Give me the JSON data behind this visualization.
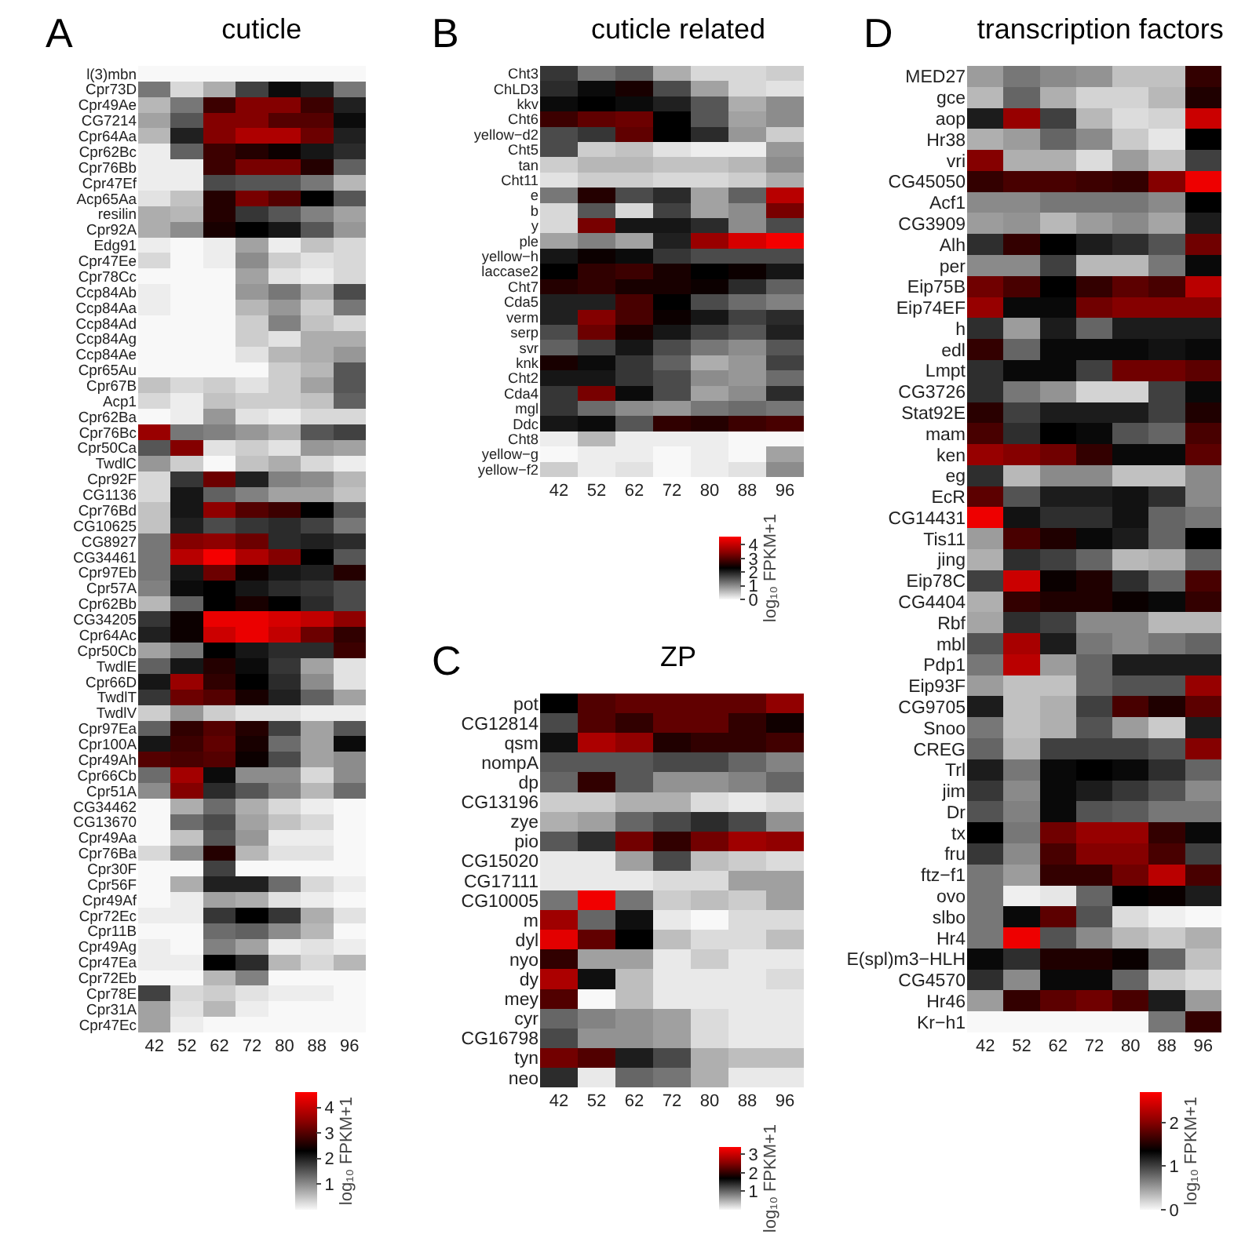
{
  "chart_data": [
    {
      "type": "heatmap",
      "title": "cuticle",
      "annotations": [
        "A"
      ],
      "clabel": "log₁₀ FPKM+1",
      "clim": [
        0,
        4.6
      ],
      "cticks": [
        1,
        2,
        3,
        4
      ],
      "categories": [
        "42",
        "52",
        "62",
        "72",
        "80",
        "88",
        "96"
      ],
      "y_categories": [
        "l(3)mbn",
        "Cpr73D",
        "Cpr49Ae",
        "CG7214",
        "Cpr64Aa",
        "Cpr62Bc",
        "Cpr76Bb",
        "Cpr47Ef",
        "Acp65Aa",
        "resilin",
        "Cpr92A",
        "Edg91",
        "Cpr47Ee",
        "Cpr78Cc",
        "Ccp84Ab",
        "Ccp84Aa",
        "Ccp84Ad",
        "Ccp84Ag",
        "Ccp84Ae",
        "Cpr65Au",
        "Cpr67B",
        "Acp1",
        "Cpr62Ba",
        "Cpr76Bc",
        "Cpr50Ca",
        "TwdlC",
        "Cpr92F",
        "CG1136",
        "Cpr76Bd",
        "CG10625",
        "CG8927",
        "CG34461",
        "Cpr97Eb",
        "Cpr57A",
        "Cpr62Bb",
        "CG34205",
        "Cpr64Ac",
        "Cpr50Cb",
        "TwdlE",
        "Cpr66D",
        "TwdlT",
        "TwdlV",
        "Cpr97Ea",
        "Cpr100A",
        "Cpr49Ah",
        "Cpr66Cb",
        "Cpr51A",
        "CG34462",
        "CG13670",
        "Cpr49Aa",
        "Cpr76Ba",
        "Cpr30F",
        "Cpr56F",
        "Cpr49Af",
        "Cpr72Ec",
        "Cpr11B",
        "Cpr49Ag",
        "Cpr47Ea",
        "Cpr72Eb",
        "Cpr78E",
        "Cpr31A",
        "Cpr47Ec"
      ],
      "cells": [
        [
          0,
          0,
          0,
          0,
          0,
          0,
          0
        ],
        [
          1.2,
          0.3,
          0.7,
          1.7,
          2.2,
          2.0,
          1.2
        ],
        [
          0.6,
          1.2,
          2.8,
          3.4,
          3.4,
          2.8,
          2.0
        ],
        [
          0.8,
          1.5,
          3.4,
          3.4,
          3.0,
          3.0,
          2.2
        ],
        [
          0.6,
          2.0,
          3.4,
          3.8,
          3.8,
          3.2,
          2.0
        ],
        [
          0.1,
          1.4,
          2.8,
          2.6,
          2.4,
          2.1,
          1.9
        ],
        [
          0.1,
          0.1,
          2.8,
          3.3,
          3.3,
          2.6,
          1.4
        ],
        [
          0.1,
          0.1,
          1.6,
          1.5,
          1.5,
          1.2,
          0.6
        ],
        [
          0.2,
          0.5,
          2.6,
          3.3,
          3.0,
          2.3,
          1.5
        ],
        [
          0.7,
          0.6,
          2.6,
          1.8,
          1.5,
          1.1,
          0.8
        ],
        [
          0.7,
          1.0,
          2.5,
          2.3,
          2.1,
          1.5,
          0.9
        ],
        [
          0.1,
          0,
          0.1,
          0.8,
          0.1,
          0.5,
          0.3
        ],
        [
          0.3,
          0,
          0.1,
          1.0,
          0.4,
          0.2,
          0.3
        ],
        [
          0,
          0,
          0,
          0.8,
          0.2,
          0.1,
          0.3
        ],
        [
          0.1,
          0,
          0,
          0.9,
          1.2,
          0.7,
          1.6
        ],
        [
          0.1,
          0,
          0,
          0.6,
          0.9,
          0.4,
          1.2
        ],
        [
          0,
          0,
          0,
          0.4,
          1.1,
          0.5,
          0.3
        ],
        [
          0,
          0,
          0,
          0.4,
          0.2,
          0.7,
          0.7
        ],
        [
          0,
          0,
          0,
          0.2,
          0.6,
          0.7,
          0.9
        ],
        [
          0,
          0,
          0,
          0,
          0.4,
          0.6,
          1.5
        ],
        [
          0.5,
          0.3,
          0.4,
          0.2,
          0.4,
          0.8,
          1.5
        ],
        [
          0.3,
          0.1,
          0.5,
          0.4,
          0.4,
          0.5,
          1.4
        ],
        [
          0,
          0.1,
          0.9,
          0.2,
          0.1,
          0.3,
          0.3
        ],
        [
          3.6,
          1.2,
          1.1,
          0.9,
          0.7,
          1.5,
          1.7
        ],
        [
          1.5,
          3.4,
          0.2,
          0.4,
          0.2,
          0.9,
          0.8
        ],
        [
          0.9,
          0.4,
          0,
          0.5,
          0.7,
          0.3,
          0.1
        ],
        [
          0.3,
          1.8,
          3.2,
          2.0,
          1.1,
          1.0,
          0.6
        ],
        [
          0.3,
          2.1,
          1.4,
          1.1,
          0.8,
          0.8,
          0.5
        ],
        [
          0.5,
          2.1,
          3.5,
          3.0,
          2.8,
          2.3,
          1.5
        ],
        [
          0.5,
          2.0,
          1.6,
          1.8,
          1.9,
          1.7,
          1.2
        ],
        [
          1.2,
          3.4,
          3.5,
          3.2,
          1.9,
          2.0,
          1.9
        ],
        [
          1.2,
          3.9,
          4.5,
          3.8,
          3.4,
          2.3,
          1.5
        ],
        [
          1.2,
          2.1,
          3.2,
          2.4,
          2.1,
          2.0,
          2.6
        ],
        [
          1.1,
          2.2,
          2.3,
          2.1,
          1.9,
          1.8,
          1.6
        ],
        [
          0.6,
          1.4,
          2.3,
          2.5,
          2.3,
          1.9,
          1.6
        ],
        [
          1.8,
          2.4,
          4.4,
          4.4,
          4.2,
          4.0,
          3.5
        ],
        [
          2.0,
          2.4,
          4.1,
          4.4,
          4.0,
          3.2,
          2.7
        ],
        [
          0.8,
          1.2,
          2.3,
          2.1,
          1.9,
          1.9,
          2.8
        ],
        [
          1.4,
          2.1,
          2.6,
          2.2,
          1.8,
          0.8,
          0.2
        ],
        [
          2.1,
          3.6,
          2.7,
          2.3,
          1.9,
          1.0,
          0.2
        ],
        [
          1.8,
          3.2,
          3.0,
          2.5,
          2.0,
          1.4,
          0.8
        ],
        [
          0.4,
          0.9,
          0.4,
          0.2,
          0.2,
          0.1,
          0.1
        ],
        [
          1.4,
          2.7,
          3.0,
          2.6,
          1.7,
          0.8,
          1.5
        ],
        [
          2.1,
          2.8,
          3.1,
          2.5,
          1.3,
          0.8,
          2.2
        ],
        [
          3.0,
          2.9,
          3.0,
          2.4,
          1.6,
          0.8,
          1.0
        ],
        [
          1.3,
          3.7,
          2.2,
          1.0,
          1.0,
          0.3,
          1.0
        ],
        [
          1.0,
          3.4,
          1.9,
          1.5,
          1.1,
          0.6,
          1.3
        ],
        [
          0,
          0.7,
          1.3,
          0.7,
          0.3,
          0.1,
          0
        ],
        [
          0,
          1.3,
          1.6,
          0.8,
          0.5,
          0.3,
          0
        ],
        [
          0,
          0.5,
          1.5,
          0.9,
          0.1,
          0.1,
          0
        ],
        [
          0.3,
          1.0,
          2.6,
          0.6,
          0.2,
          0.2,
          0
        ],
        [
          0,
          0,
          1.7,
          0,
          0,
          0,
          0
        ],
        [
          0,
          0.7,
          2.0,
          2.0,
          1.3,
          0.3,
          0.1
        ],
        [
          0,
          0.1,
          0.8,
          0.7,
          0.2,
          0.1,
          0
        ],
        [
          0.1,
          0.1,
          1.8,
          2.3,
          1.8,
          0.7,
          0.2
        ],
        [
          0,
          0,
          1.3,
          1.4,
          1.0,
          0.6,
          0
        ],
        [
          0.1,
          0,
          1.1,
          0.8,
          0.1,
          0.2,
          0.1
        ],
        [
          0.1,
          0.1,
          2.3,
          1.9,
          0.6,
          0.3,
          0.6
        ],
        [
          0,
          0,
          0.6,
          1.1,
          0,
          0,
          0
        ],
        [
          1.7,
          0.3,
          0.4,
          0.2,
          0.1,
          0.1,
          0
        ],
        [
          0.8,
          0.2,
          0.6,
          0.1,
          0,
          0,
          0
        ],
        [
          0.8,
          0.1,
          0,
          0,
          0,
          0,
          0
        ]
      ]
    },
    {
      "type": "heatmap",
      "title": "cuticle related",
      "annotations": [
        "B"
      ],
      "clabel": "log₁₀ FPKM+1",
      "clim": [
        0,
        4.6
      ],
      "cticks": [
        0,
        1,
        2,
        3,
        4
      ],
      "categories": [
        "42",
        "52",
        "62",
        "72",
        "80",
        "88",
        "96"
      ],
      "y_categories": [
        "Cht3",
        "ChLD3",
        "kkv",
        "Cht6",
        "yellow−d2",
        "Cht5",
        "tan",
        "Cht11",
        "e",
        "b",
        "y",
        "ple",
        "yellow−h",
        "laccase2",
        "Cht7",
        "Cda5",
        "verm",
        "serp",
        "svr",
        "knk",
        "Cht2",
        "Cda4",
        "mgl",
        "Ddc",
        "Cht8",
        "yellow−g",
        "yellow−f2"
      ],
      "cells": [
        [
          1.8,
          1.2,
          1.4,
          0.7,
          0.3,
          0.3,
          0.4
        ],
        [
          1.9,
          2.2,
          2.5,
          1.6,
          0.8,
          0.3,
          0.2
        ],
        [
          2.2,
          2.3,
          2.2,
          2.0,
          1.5,
          0.7,
          1.0
        ],
        [
          2.8,
          3.1,
          3.2,
          2.3,
          1.5,
          0.8,
          1.0
        ],
        [
          1.6,
          1.8,
          3.1,
          2.3,
          1.9,
          0.9,
          0.4
        ],
        [
          1.6,
          0.4,
          0.5,
          0.2,
          0.1,
          0.1,
          0.9
        ],
        [
          0.4,
          0.6,
          0.6,
          0.5,
          0.5,
          0.6,
          1.0
        ],
        [
          0.2,
          0.4,
          0.4,
          0.3,
          0.3,
          0.4,
          0.7
        ],
        [
          1.2,
          2.6,
          1.6,
          1.9,
          0.8,
          1.4,
          3.9
        ],
        [
          0.3,
          1.5,
          0.3,
          1.7,
          0.8,
          1.0,
          3.3
        ],
        [
          0.3,
          3.3,
          2.1,
          2.1,
          1.9,
          1.0,
          1.6
        ],
        [
          0.8,
          1.1,
          0.8,
          2.0,
          3.6,
          4.2,
          4.5
        ],
        [
          2.1,
          2.4,
          2.2,
          1.8,
          1.6,
          1.6,
          1.6
        ],
        [
          2.3,
          2.7,
          2.8,
          2.5,
          2.3,
          2.4,
          2.1
        ],
        [
          2.6,
          2.7,
          2.5,
          2.5,
          2.4,
          1.9,
          1.4
        ],
        [
          2.0,
          2.0,
          2.9,
          2.3,
          1.6,
          1.3,
          1.1
        ],
        [
          2.0,
          3.4,
          2.9,
          2.4,
          2.1,
          1.7,
          1.9
        ],
        [
          1.6,
          3.2,
          2.5,
          2.1,
          1.7,
          1.5,
          2.0
        ],
        [
          1.4,
          1.7,
          2.1,
          1.6,
          1.2,
          1.0,
          1.5
        ],
        [
          2.5,
          2.2,
          1.8,
          1.4,
          0.7,
          0.9,
          1.7
        ],
        [
          2.1,
          2.1,
          1.8,
          1.6,
          1.0,
          0.9,
          1.3
        ],
        [
          1.8,
          3.3,
          2.2,
          1.6,
          0.8,
          1.0,
          1.9
        ],
        [
          1.8,
          1.3,
          1.0,
          0.9,
          1.2,
          1.3,
          1.2
        ],
        [
          2.1,
          2.2,
          1.5,
          2.7,
          2.6,
          2.8,
          2.9
        ],
        [
          0.1,
          0.6,
          0.1,
          0.1,
          0.1,
          0,
          0
        ],
        [
          0,
          0.1,
          0.1,
          0,
          0.1,
          0,
          0.8
        ],
        [
          0.4,
          0.1,
          0.2,
          0,
          0.1,
          0.2,
          1.0
        ]
      ]
    },
    {
      "type": "heatmap",
      "title": "ZP",
      "annotations": [
        "C"
      ],
      "clabel": "log₁₀ FPKM+1",
      "clim": [
        0,
        3.4
      ],
      "cticks": [
        1,
        2,
        3
      ],
      "categories": [
        "42",
        "52",
        "62",
        "72",
        "80",
        "88",
        "96"
      ],
      "y_categories": [
        "pot",
        "CG12814",
        "qsm",
        "nompA",
        "dp",
        "CG13196",
        "zye",
        "pio",
        "CG15020",
        "CG17111",
        "CG10005",
        "m",
        "dyl",
        "nyo",
        "dy",
        "mey",
        "cyr",
        "CG16798",
        "tyn",
        "neo"
      ],
      "cells": [
        [
          1.7,
          2.2,
          2.3,
          2.3,
          2.3,
          2.3,
          2.6
        ],
        [
          1.2,
          2.2,
          2.0,
          2.3,
          2.3,
          2.0,
          1.8
        ],
        [
          1.6,
          2.8,
          2.6,
          1.9,
          2.0,
          2.0,
          2.1
        ],
        [
          1.1,
          1.1,
          1.1,
          1.2,
          1.2,
          1.0,
          0.8
        ],
        [
          1.0,
          2.0,
          1.1,
          0.7,
          0.7,
          0.8,
          1.0
        ],
        [
          0.3,
          0.3,
          0.5,
          0.5,
          0.2,
          0.1,
          0.2
        ],
        [
          0.5,
          0.6,
          1.0,
          1.2,
          1.4,
          1.2,
          0.7
        ],
        [
          1.1,
          1.4,
          2.4,
          2.0,
          2.4,
          2.7,
          2.6
        ],
        [
          0.1,
          0.1,
          0.6,
          1.2,
          0.4,
          0.3,
          0.2
        ],
        [
          0.1,
          0.1,
          0.1,
          0.2,
          0.2,
          0.6,
          0.6
        ],
        [
          0.9,
          3.3,
          0.9,
          0.3,
          0.4,
          0.3,
          0.6
        ],
        [
          2.7,
          1.0,
          1.6,
          0.1,
          0,
          0.2,
          0.2
        ],
        [
          3.2,
          2.3,
          1.7,
          0.4,
          0.2,
          0.2,
          0.4
        ],
        [
          2.0,
          0.6,
          0.6,
          0.1,
          0.3,
          0.1,
          0.1
        ],
        [
          2.8,
          1.6,
          0.4,
          0.1,
          0.1,
          0.1,
          0.2
        ],
        [
          2.2,
          0,
          0.4,
          0.1,
          0.1,
          0.1,
          0.1
        ],
        [
          1.0,
          0.8,
          0.7,
          0.6,
          0.2,
          0.1,
          0.1
        ],
        [
          1.2,
          0.7,
          0.7,
          0.6,
          0.2,
          0.1,
          0.1
        ],
        [
          2.4,
          2.2,
          1.5,
          1.2,
          0.5,
          0.4,
          0.4
        ],
        [
          1.4,
          0.1,
          1.0,
          0.9,
          0.5,
          0.1,
          0.1
        ]
      ]
    },
    {
      "type": "heatmap",
      "title": "transcription factors",
      "annotations": [
        "D"
      ],
      "clabel": "log₁₀ FPKM+1",
      "clim": [
        0,
        2.7
      ],
      "cticks": [
        0,
        1,
        2
      ],
      "categories": [
        "42",
        "52",
        "62",
        "72",
        "80",
        "88",
        "96"
      ],
      "y_categories": [
        "MED27",
        "gce",
        "aop",
        "Hr38",
        "vri",
        "CG45050",
        "Acf1",
        "CG3909",
        "Alh",
        "per",
        "Eip75B",
        "Eip74EF",
        "h",
        "edl",
        "Lmpt",
        "CG3726",
        "Stat92E",
        "mam",
        "ken",
        "eg",
        "EcR",
        "CG14431",
        "Tis11",
        "jing",
        "Eip78C",
        "CG4404",
        "Rbf",
        "mbl",
        "Pdp1",
        "Eip93F",
        "CG9705",
        "Snoo",
        "CREG",
        "Trl",
        "jim",
        "Dr",
        "tx",
        "fru",
        "ftz−f1",
        "ovo",
        "slbo",
        "Hr4",
        "E(spl)m3−HLH",
        "CG4570",
        "Hr46",
        "Kr−h1"
      ],
      "cells": [
        [
          0.5,
          0.7,
          0.6,
          0.55,
          0.3,
          0.3,
          1.6
        ],
        [
          0.35,
          0.8,
          0.4,
          0.2,
          0.2,
          0.35,
          1.5
        ],
        [
          1.2,
          2.1,
          1.0,
          0.35,
          0.15,
          0.2,
          2.4
        ],
        [
          0.4,
          0.5,
          0.8,
          0.6,
          0.25,
          0.1,
          1.35
        ],
        [
          2.0,
          0.4,
          0.4,
          0.15,
          0.5,
          0.3,
          1.0
        ],
        [
          1.6,
          1.7,
          1.7,
          1.65,
          1.6,
          2.0,
          2.6
        ],
        [
          0.6,
          0.6,
          0.7,
          0.7,
          0.7,
          0.6,
          1.35
        ],
        [
          0.5,
          0.55,
          0.35,
          0.5,
          0.6,
          0.45,
          1.2
        ],
        [
          1.1,
          1.6,
          1.35,
          1.2,
          1.1,
          0.9,
          1.9
        ],
        [
          0.6,
          0.6,
          1.0,
          0.35,
          0.35,
          0.7,
          1.3
        ],
        [
          1.9,
          1.7,
          1.35,
          1.6,
          1.8,
          1.7,
          2.3
        ],
        [
          2.1,
          1.3,
          1.3,
          1.9,
          2.0,
          2.0,
          2.0
        ],
        [
          1.1,
          0.5,
          1.2,
          0.8,
          1.2,
          1.2,
          1.2
        ],
        [
          1.6,
          0.8,
          1.3,
          1.3,
          1.3,
          1.25,
          1.3
        ],
        [
          1.1,
          1.3,
          1.3,
          1.0,
          1.9,
          1.9,
          1.8
        ],
        [
          1.1,
          0.7,
          0.55,
          0.2,
          0.2,
          1.0,
          1.3
        ],
        [
          1.55,
          1.0,
          1.2,
          1.2,
          1.2,
          1.0,
          1.5
        ],
        [
          1.7,
          1.1,
          1.35,
          1.3,
          0.9,
          0.8,
          1.7
        ],
        [
          2.1,
          2.0,
          1.9,
          1.6,
          1.3,
          1.3,
          1.8
        ],
        [
          1.1,
          0.35,
          0.6,
          0.6,
          0.3,
          0.3,
          0.6
        ],
        [
          1.8,
          0.9,
          1.2,
          1.2,
          1.25,
          1.1,
          0.6
        ],
        [
          2.6,
          1.25,
          1.1,
          1.1,
          1.25,
          0.8,
          0.7
        ],
        [
          0.5,
          1.7,
          1.5,
          1.3,
          1.2,
          0.8,
          1.35
        ],
        [
          0.4,
          1.1,
          1.0,
          0.8,
          0.35,
          0.4,
          0.8
        ],
        [
          1.0,
          2.4,
          1.4,
          1.5,
          1.1,
          0.8,
          1.7
        ],
        [
          0.4,
          1.6,
          1.5,
          1.5,
          1.4,
          1.3,
          1.6
        ],
        [
          0.45,
          1.1,
          1.0,
          0.6,
          0.6,
          0.35,
          0.35
        ],
        [
          0.9,
          2.2,
          1.2,
          0.7,
          0.6,
          0.7,
          0.8
        ],
        [
          0.7,
          2.3,
          0.5,
          0.8,
          1.2,
          1.2,
          1.2
        ],
        [
          0.5,
          0.3,
          0.3,
          0.8,
          0.9,
          0.9,
          2.1
        ],
        [
          1.2,
          0.3,
          0.4,
          1.0,
          1.7,
          1.5,
          1.8
        ],
        [
          0.7,
          0.3,
          0.4,
          0.9,
          0.5,
          0.25,
          1.2
        ],
        [
          0.8,
          0.35,
          1.0,
          1.0,
          1.0,
          0.9,
          2.0
        ],
        [
          1.2,
          0.7,
          1.3,
          1.35,
          1.3,
          1.1,
          0.8
        ],
        [
          1.05,
          0.6,
          1.3,
          1.2,
          1.05,
          0.9,
          0.6
        ],
        [
          0.9,
          0.65,
          1.3,
          0.9,
          0.85,
          0.7,
          0.7
        ],
        [
          1.35,
          0.7,
          1.9,
          2.1,
          2.1,
          1.6,
          1.3
        ],
        [
          1.05,
          0.6,
          1.7,
          2.0,
          2.0,
          1.7,
          1.0
        ],
        [
          0.7,
          0.5,
          1.6,
          1.6,
          1.9,
          2.3,
          1.7
        ],
        [
          0.7,
          0.05,
          0.1,
          0.8,
          1.35,
          1.4,
          1.2
        ],
        [
          0.7,
          1.3,
          1.8,
          0.9,
          0.15,
          0.05,
          0
        ],
        [
          0.7,
          2.6,
          0.9,
          0.6,
          0.35,
          0.25,
          0.4
        ],
        [
          1.3,
          1.1,
          1.5,
          1.5,
          1.4,
          0.8,
          0.3
        ],
        [
          1.1,
          0.6,
          1.3,
          1.3,
          0.8,
          0.25,
          0.15
        ],
        [
          0.5,
          1.6,
          1.8,
          1.9,
          1.7,
          1.2,
          0.5
        ],
        [
          0,
          0,
          0,
          0,
          0,
          0.7,
          1.6
        ]
      ]
    }
  ]
}
